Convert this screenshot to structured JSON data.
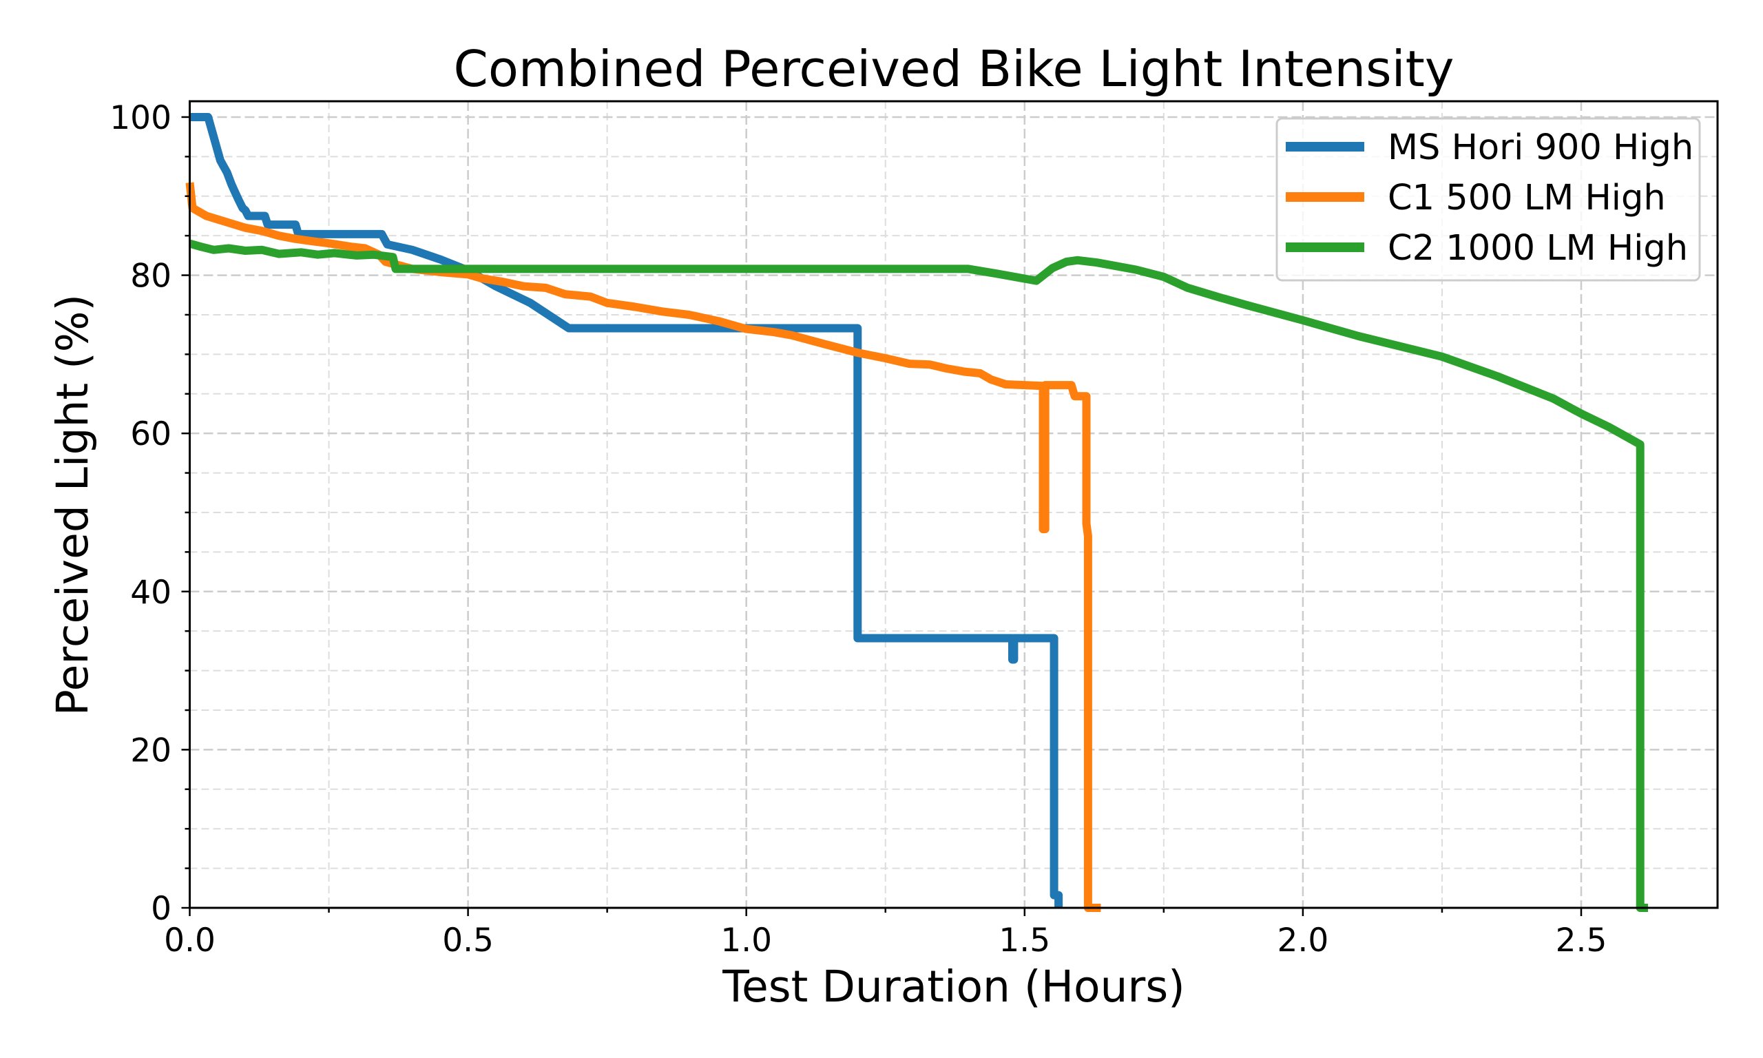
{
  "chart_data": {
    "type": "line",
    "title": "Combined Perceived Bike Light Intensity",
    "xlabel": "Test Duration (Hours)",
    "ylabel": "Perceived Light (%)",
    "xlim": [
      0,
      2.745
    ],
    "ylim": [
      0,
      102
    ],
    "x_ticks": [
      0.0,
      0.5,
      1.0,
      1.5,
      2.0,
      2.5
    ],
    "x_tick_labels": [
      "0.0",
      "0.5",
      "1.0",
      "1.5",
      "2.0",
      "2.5"
    ],
    "x_minor_ticks": [
      0.25,
      0.75,
      1.25,
      1.75,
      2.25,
      2.75
    ],
    "y_ticks": [
      0,
      20,
      40,
      60,
      80,
      100
    ],
    "y_tick_labels": [
      "0",
      "20",
      "40",
      "60",
      "80",
      "100"
    ],
    "y_minor_ticks": [
      5,
      10,
      15,
      25,
      30,
      35,
      45,
      50,
      55,
      65,
      70,
      75,
      85,
      90,
      95
    ],
    "grid": true,
    "grid_style": "dashed",
    "legend_position": "upper-right",
    "series": [
      {
        "name": "MS Hori 900 High",
        "color": "#1f77b4",
        "points": [
          [
            0,
            100
          ],
          [
            0.033,
            100
          ],
          [
            0.045,
            97
          ],
          [
            0.055,
            94.5
          ],
          [
            0.067,
            93
          ],
          [
            0.075,
            91.5
          ],
          [
            0.08,
            90.7
          ],
          [
            0.088,
            89.5
          ],
          [
            0.095,
            88.5
          ],
          [
            0.1,
            88.2
          ],
          [
            0.105,
            87.5
          ],
          [
            0.135,
            87.5
          ],
          [
            0.14,
            86.4
          ],
          [
            0.19,
            86.4
          ],
          [
            0.195,
            85.2
          ],
          [
            0.345,
            85.2
          ],
          [
            0.355,
            83.9
          ],
          [
            0.4,
            83.2
          ],
          [
            0.45,
            82
          ],
          [
            0.5,
            80.6
          ],
          [
            0.55,
            78.6
          ],
          [
            0.612,
            76.5
          ],
          [
            0.681,
            73.3
          ],
          [
            1.2,
            73.3
          ],
          [
            1.2,
            34.1
          ],
          [
            1.478,
            34.1
          ],
          [
            1.478,
            31.4
          ],
          [
            1.481,
            31.4
          ],
          [
            1.481,
            34.1
          ],
          [
            1.553,
            34.1
          ],
          [
            1.553,
            1.6
          ],
          [
            1.561,
            1.6
          ],
          [
            1.561,
            0
          ]
        ]
      },
      {
        "name": "C1 500 LM High",
        "color": "#ff7f0e",
        "points": [
          [
            0,
            91.7
          ],
          [
            0.005,
            88.5
          ],
          [
            0.03,
            87.5
          ],
          [
            0.067,
            86.7
          ],
          [
            0.1,
            86
          ],
          [
            0.13,
            85.6
          ],
          [
            0.16,
            85
          ],
          [
            0.19,
            84.6
          ],
          [
            0.22,
            84.3
          ],
          [
            0.253,
            84
          ],
          [
            0.29,
            83.6
          ],
          [
            0.315,
            83.4
          ],
          [
            0.34,
            82.6
          ],
          [
            0.352,
            81.7
          ],
          [
            0.4,
            80.8
          ],
          [
            0.45,
            80.4
          ],
          [
            0.5,
            80.1
          ],
          [
            0.525,
            79.6
          ],
          [
            0.56,
            79.2
          ],
          [
            0.6,
            78.6
          ],
          [
            0.64,
            78.4
          ],
          [
            0.674,
            77.6
          ],
          [
            0.72,
            77.3
          ],
          [
            0.75,
            76.5
          ],
          [
            0.8,
            76
          ],
          [
            0.85,
            75.4
          ],
          [
            0.897,
            75
          ],
          [
            0.95,
            74.2
          ],
          [
            1.0,
            73.2
          ],
          [
            1.05,
            72.8
          ],
          [
            1.082,
            72.4
          ],
          [
            1.14,
            71.3
          ],
          [
            1.2,
            70.2
          ],
          [
            1.25,
            69.5
          ],
          [
            1.293,
            68.8
          ],
          [
            1.33,
            68.7
          ],
          [
            1.36,
            68.2
          ],
          [
            1.392,
            67.8
          ],
          [
            1.42,
            67.6
          ],
          [
            1.44,
            66.8
          ],
          [
            1.466,
            66.2
          ],
          [
            1.533,
            66
          ],
          [
            1.533,
            47.9
          ],
          [
            1.537,
            47.9
          ],
          [
            1.537,
            66.1
          ],
          [
            1.584,
            66.1
          ],
          [
            1.59,
            64.7
          ],
          [
            1.611,
            64.7
          ],
          [
            1.611,
            48.6
          ],
          [
            1.614,
            47
          ],
          [
            1.614,
            0
          ],
          [
            1.637,
            0
          ]
        ]
      },
      {
        "name": "C2 1000 LM High",
        "color": "#2ca02c",
        "points": [
          [
            0,
            84
          ],
          [
            0.02,
            83.6
          ],
          [
            0.043,
            83.2
          ],
          [
            0.07,
            83.4
          ],
          [
            0.1,
            83.1
          ],
          [
            0.13,
            83.2
          ],
          [
            0.16,
            82.7
          ],
          [
            0.2,
            82.9
          ],
          [
            0.23,
            82.6
          ],
          [
            0.26,
            82.8
          ],
          [
            0.3,
            82.5
          ],
          [
            0.33,
            82.6
          ],
          [
            0.365,
            82.3
          ],
          [
            0.37,
            80.8
          ],
          [
            1.399,
            80.8
          ],
          [
            1.45,
            80.2
          ],
          [
            1.521,
            79.3
          ],
          [
            1.55,
            80.9
          ],
          [
            1.575,
            81.7
          ],
          [
            1.595,
            81.9
          ],
          [
            1.63,
            81.6
          ],
          [
            1.7,
            80.7
          ],
          [
            1.75,
            79.8
          ],
          [
            1.793,
            78.4
          ],
          [
            1.85,
            77.2
          ],
          [
            1.9,
            76.2
          ],
          [
            2.0,
            74.3
          ],
          [
            2.1,
            72.3
          ],
          [
            2.25,
            69.7
          ],
          [
            2.35,
            67.2
          ],
          [
            2.45,
            64.4
          ],
          [
            2.5,
            62.5
          ],
          [
            2.55,
            60.8
          ],
          [
            2.606,
            58.6
          ],
          [
            2.606,
            0
          ],
          [
            2.62,
            0
          ]
        ]
      }
    ]
  }
}
